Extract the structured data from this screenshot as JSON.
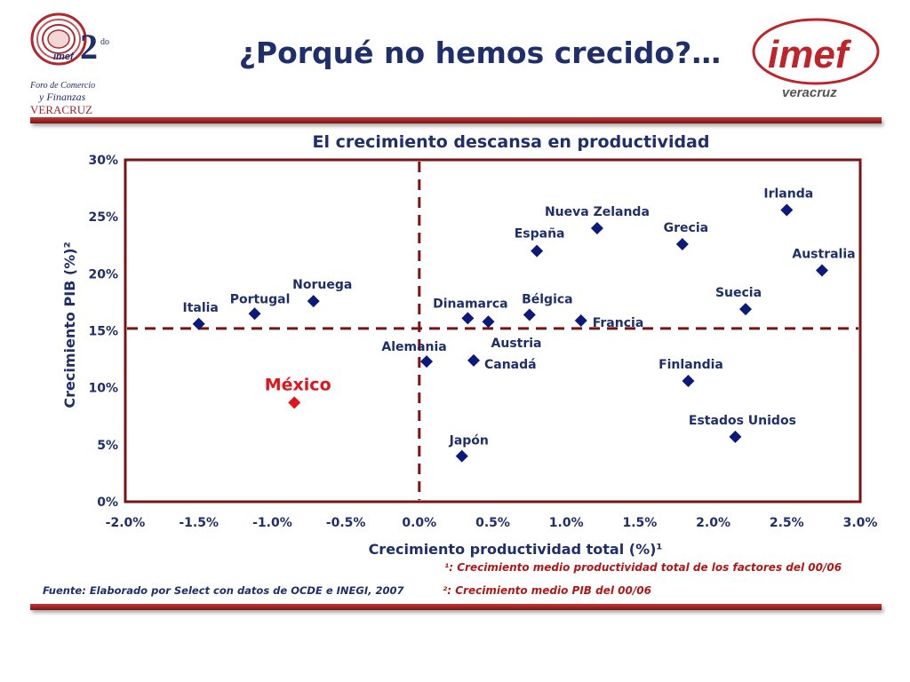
{
  "header": {
    "title": "¿Porqué no hemos crecido?…",
    "forum_logo": {
      "number": "2",
      "suffix": "do",
      "line1": "Foro de Comercio",
      "line2": "y Finanzas",
      "line3": "VERACRUZ",
      "badge": "imef"
    },
    "imef_logo": {
      "brand": "imef",
      "city": "veracruz"
    }
  },
  "footer": {
    "source": "Fuente: Elaborado por Select con datos de  OCDE e INEGI, 2007",
    "note1": "¹: Crecimiento medio productividad total de los factores del 00/06",
    "note2": "²: Crecimiento medio PIB del 00/06"
  },
  "colors": {
    "navy": "#1f2f6b",
    "point": "#0b1a7a",
    "mexico": "#e0151b",
    "frame": "#7a1414"
  },
  "chart_data": {
    "type": "scatter",
    "title": "El crecimiento descansa en  productividad",
    "xlabel": "Crecimiento productividad total (%)¹",
    "ylabel": "Crecimiento PIB (%)²",
    "xlim": [
      -2.0,
      3.0
    ],
    "ylim": [
      0,
      30
    ],
    "xticks": [
      -2.0,
      -1.5,
      -1.0,
      -0.5,
      0.0,
      0.5,
      1.0,
      1.5,
      2.0,
      2.5,
      3.0
    ],
    "xtick_labels": [
      "-2.0%",
      "-1.5%",
      "-1.0%",
      "-0.5%",
      "0.0%",
      "0.5%",
      "1.0%",
      "1.5%",
      "2.0%",
      "2.5%",
      "3.0%"
    ],
    "yticks": [
      0,
      5,
      10,
      15,
      20,
      25,
      30
    ],
    "ytick_labels": [
      "0%",
      "5%",
      "10%",
      "15%",
      "20%",
      "25%",
      "30%"
    ],
    "reference_lines": {
      "x": 0.0,
      "y": 15.2
    },
    "points": [
      {
        "label": "Italia",
        "x": -1.5,
        "y": 15.6
      },
      {
        "label": "Portugal",
        "x": -1.12,
        "y": 16.5
      },
      {
        "label": "Noruega",
        "x": -0.72,
        "y": 17.6
      },
      {
        "label": "México",
        "x": -0.85,
        "y": 8.7,
        "highlight": true
      },
      {
        "label": "Alemania",
        "x": 0.05,
        "y": 12.3
      },
      {
        "label": "Dinamarca",
        "x": 0.33,
        "y": 16.1
      },
      {
        "label": "Austria",
        "x": 0.47,
        "y": 15.8
      },
      {
        "label": "Canadá",
        "x": 0.37,
        "y": 12.4
      },
      {
        "label": "Bélgica",
        "x": 0.75,
        "y": 16.4
      },
      {
        "label": "Francia",
        "x": 1.1,
        "y": 15.9
      },
      {
        "label": "Japón",
        "x": 0.29,
        "y": 4.0
      },
      {
        "label": "España",
        "x": 0.8,
        "y": 22.0
      },
      {
        "label": "Nueva Zelanda",
        "x": 1.21,
        "y": 24.0
      },
      {
        "label": "Grecia",
        "x": 1.79,
        "y": 22.6
      },
      {
        "label": "Irlanda",
        "x": 2.5,
        "y": 25.6
      },
      {
        "label": "Australia",
        "x": 2.74,
        "y": 20.3
      },
      {
        "label": "Suecia",
        "x": 2.22,
        "y": 16.9
      },
      {
        "label": "Finlandia",
        "x": 1.83,
        "y": 10.6
      },
      {
        "label": "Estados Unidos",
        "x": 2.15,
        "y": 5.7
      }
    ]
  }
}
